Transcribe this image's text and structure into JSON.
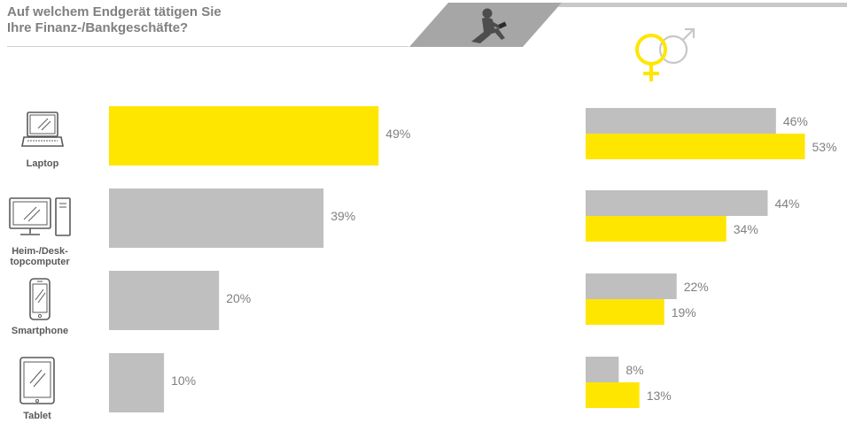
{
  "title": {
    "line1": "Auf welchem Endgerät tätigen Sie",
    "line2": "Ihre Finanz-/Bankgeschäfte?"
  },
  "icons": {
    "banner": "person-with-tablet-icon",
    "gender": "female-male-symbol-icon"
  },
  "colors": {
    "yellow": "#FFE600",
    "gray": "#BFBFBF",
    "text": "#808080",
    "label": "#595959"
  },
  "devices": [
    {
      "label": "Laptop",
      "icon": "laptop-icon"
    },
    {
      "label": "Heim-/Desk-\ntopcomputer",
      "icon": "desktop-computer-icon"
    },
    {
      "label": "Smartphone",
      "icon": "smartphone-icon"
    },
    {
      "label": "Tablet",
      "icon": "tablet-icon"
    }
  ],
  "chart_data": [
    {
      "type": "bar",
      "orientation": "horizontal",
      "categories": [
        "Laptop",
        "Heim-/Desk-topcomputer",
        "Smartphone",
        "Tablet"
      ],
      "values": [
        49,
        39,
        20,
        10
      ],
      "labels": [
        "49%",
        "39%",
        "20%",
        "10%"
      ],
      "bar_colors": [
        "#FFE600",
        "#BFBFBF",
        "#BFBFBF",
        "#BFBFBF"
      ],
      "unit": "%",
      "xlim": [
        0,
        100
      ],
      "grid": false
    },
    {
      "type": "bar",
      "orientation": "horizontal",
      "categories": [
        "Laptop",
        "Heim-/Desk-topcomputer",
        "Smartphone",
        "Tablet"
      ],
      "series": [
        {
          "values": [
            46,
            44,
            22,
            8
          ],
          "labels": [
            "46%",
            "44%",
            "22%",
            "8%"
          ],
          "color": "#BFBFBF",
          "legend_icon": "male-symbol-icon"
        },
        {
          "values": [
            53,
            34,
            19,
            13
          ],
          "labels": [
            "53%",
            "34%",
            "19%",
            "13%"
          ],
          "color": "#FFE600",
          "legend_icon": "female-symbol-icon"
        }
      ],
      "unit": "%",
      "xlim": [
        0,
        100
      ],
      "grid": false
    }
  ]
}
